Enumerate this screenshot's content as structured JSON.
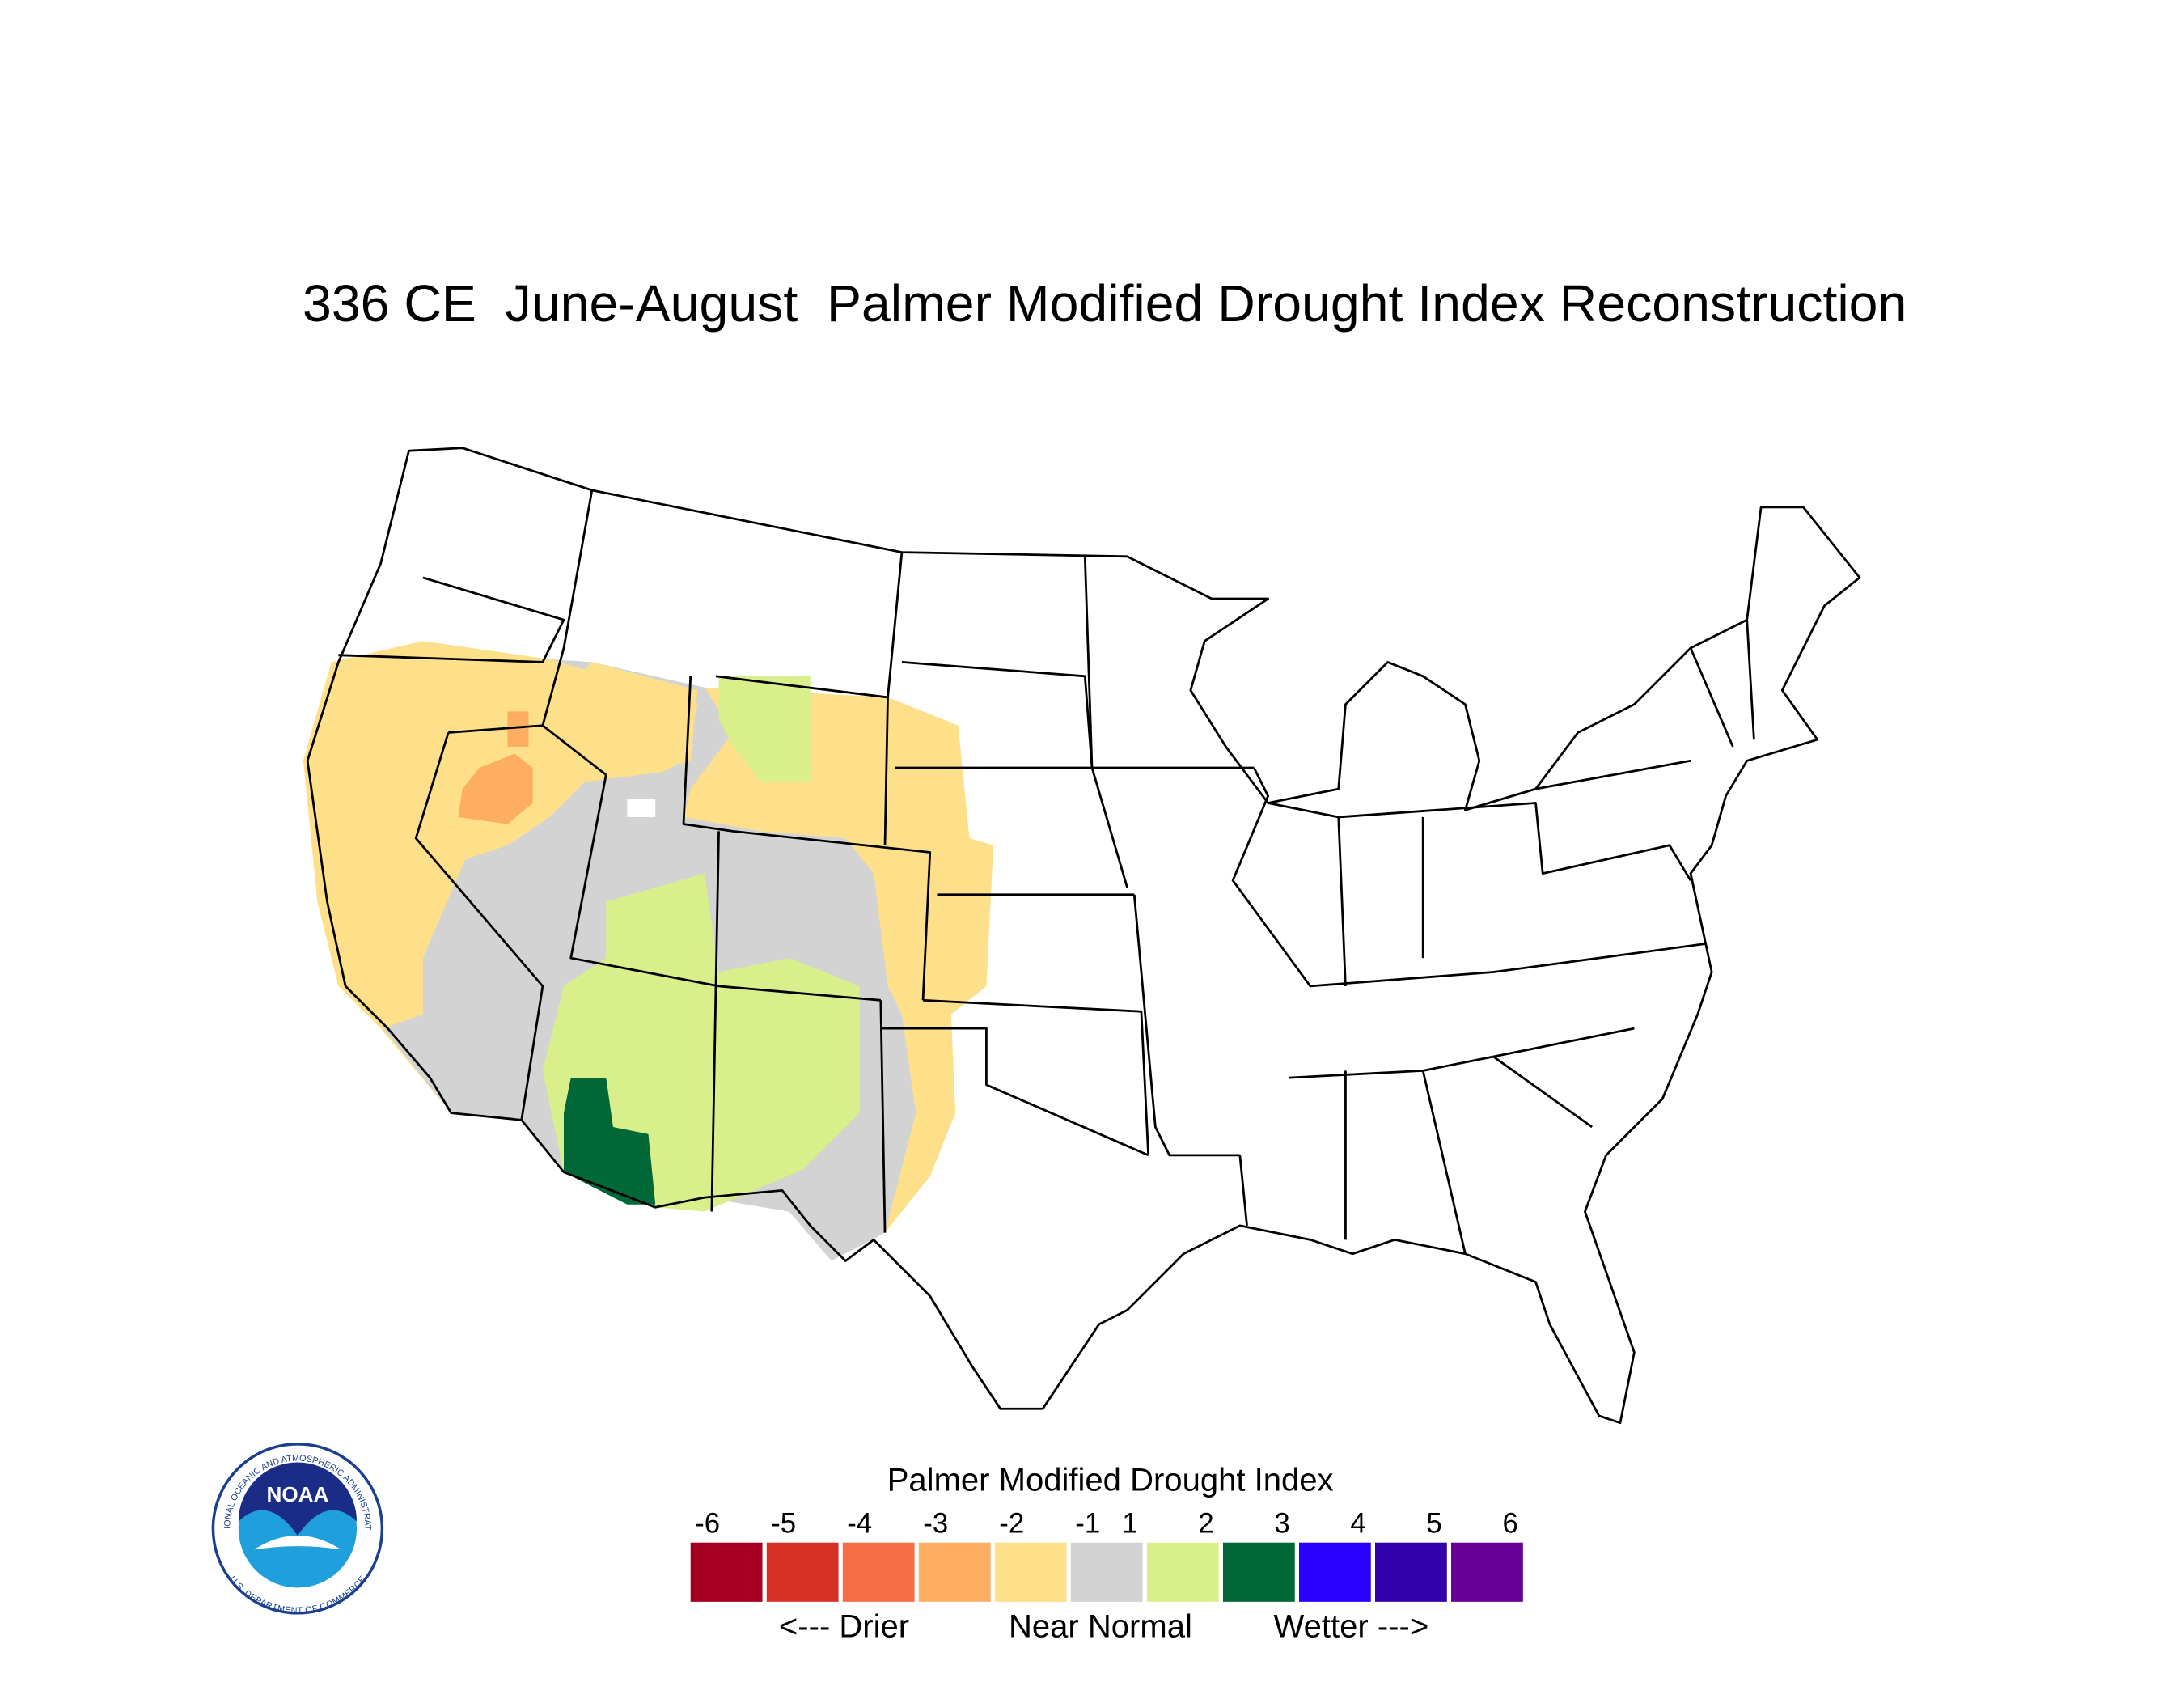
{
  "title": "336 CE  June-August  Palmer Modified Drought Index Reconstruction",
  "legend": {
    "title": "Palmer Modified Drought Index",
    "ticks": [
      -6,
      -5,
      -4,
      -3,
      -2,
      -1,
      1,
      2,
      3,
      4,
      5,
      6
    ],
    "colors": [
      "#a50021",
      "#d73027",
      "#f46d43",
      "#fdae61",
      "#fee08b",
      "#d3d3d3",
      "#d9ef8b",
      "#006837",
      "#2a00ff",
      "#3300aa",
      "#660099"
    ],
    "annotations": [
      "<--- Drier",
      "Near Normal",
      "Wetter --->"
    ]
  },
  "logo": {
    "text": "NOAA",
    "ring_top": "NATIONAL OCEANIC AND ATMOSPHERIC ADMINISTRATION",
    "ring_bottom": "U.S. DEPARTMENT OF COMMERCE"
  }
}
